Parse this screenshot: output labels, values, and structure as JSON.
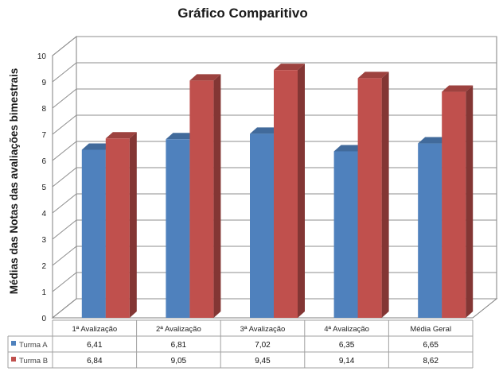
{
  "chart_data": {
    "type": "bar",
    "title": "Gráfico Comparitivo",
    "xlabel": "",
    "ylabel": "Médias das Notas das  avaliações bimestrais",
    "categories": [
      "1ª Avalização",
      "2ª Avalização",
      "3ª Avalização",
      "4ª Avalização",
      "Média Geral"
    ],
    "series": [
      {
        "name": "Turma A",
        "values": [
          6.41,
          6.81,
          7.02,
          6.35,
          6.65
        ],
        "labels": [
          "6,41",
          "6,81",
          "7,02",
          "6,35",
          "6,65"
        ],
        "color": "#4f81bd"
      },
      {
        "name": "Turma B",
        "values": [
          6.84,
          9.05,
          9.45,
          9.14,
          8.62
        ],
        "labels": [
          "6,84",
          "9,05",
          "9,45",
          "9,14",
          "8,62"
        ],
        "color": "#c0504d"
      }
    ],
    "ylim": [
      0,
      10
    ],
    "yticks": [
      "0",
      "1",
      "2",
      "3",
      "4",
      "5",
      "6",
      "7",
      "8",
      "9",
      "10"
    ],
    "grid": true,
    "style": "3d-clustered-column",
    "legend": "data-table"
  }
}
